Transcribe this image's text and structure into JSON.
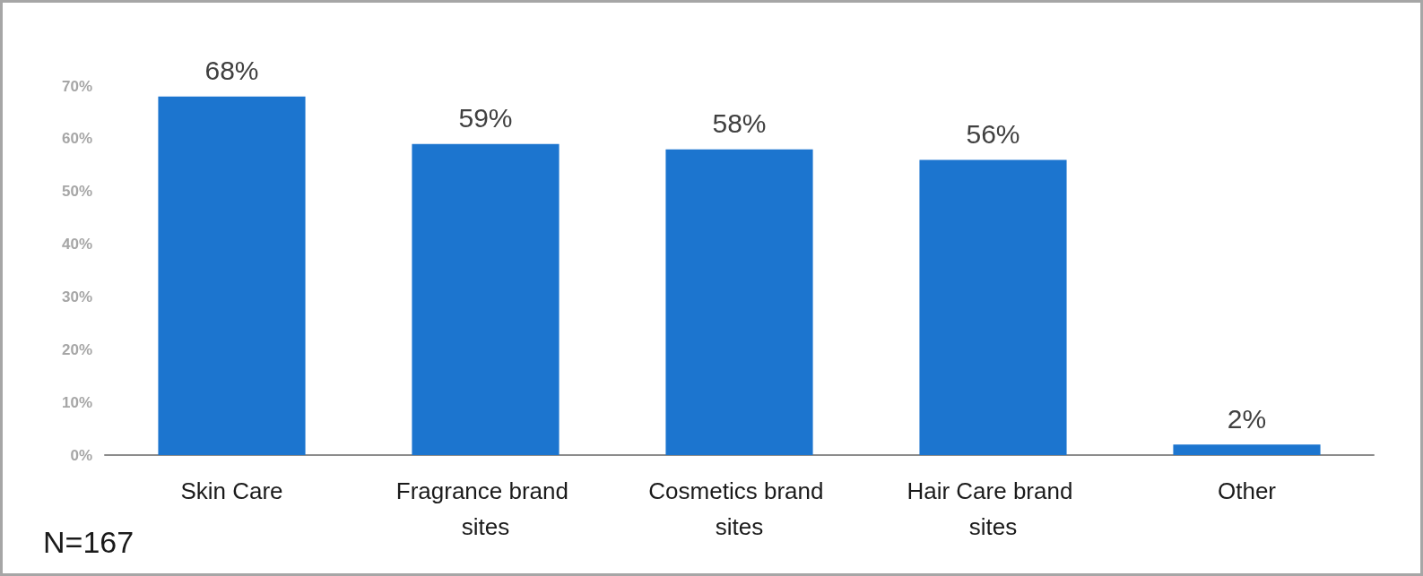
{
  "chart_data": {
    "type": "bar",
    "categories": [
      "Skin Care",
      "Fragrance brand sites",
      "Cosmetics brand sites",
      "Hair Care brand sites",
      "Other"
    ],
    "values": [
      68,
      59,
      58,
      56,
      2
    ],
    "color": "#1c75cf",
    "value_labels": [
      "68%",
      "59%",
      "58%",
      "56%",
      "2%"
    ],
    "ylim": [
      0,
      70
    ],
    "yticks": [
      {
        "value": 0,
        "label": "0%"
      },
      {
        "value": 10,
        "label": "10%"
      },
      {
        "value": 20,
        "label": "20%"
      },
      {
        "value": 30,
        "label": "30%"
      },
      {
        "value": 40,
        "label": "40%"
      },
      {
        "value": 50,
        "label": "50%"
      },
      {
        "value": 60,
        "label": "60%"
      },
      {
        "value": 70,
        "label": "70%"
      }
    ],
    "grid": false,
    "annotations": [
      "N=167"
    ]
  }
}
